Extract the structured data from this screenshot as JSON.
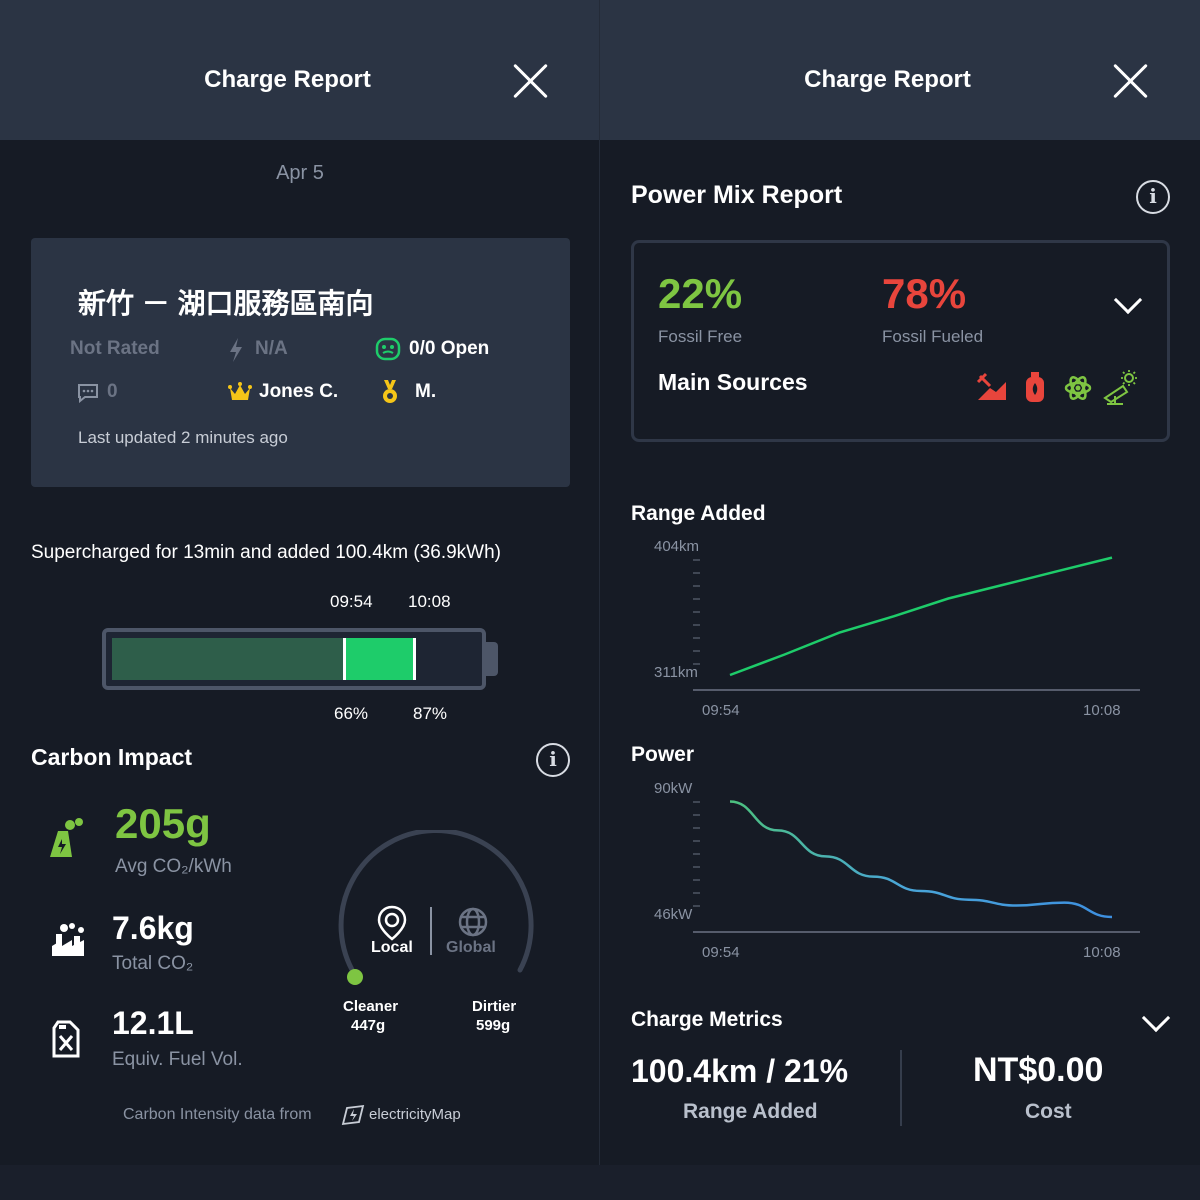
{
  "left": {
    "header_title": "Charge Report",
    "date": "Apr 5",
    "site": {
      "name": "新竹 － 湖口服務區南向",
      "rating": "Not Rated",
      "power": "N/A",
      "availability": "0/0 Open",
      "comments": "0",
      "king": "Jones C.",
      "medal": "M.",
      "last_updated": "Last updated 2 minutes ago"
    },
    "summary": "Supercharged for 13min and added 100.4km (36.9kWh)",
    "battery": {
      "start_time": "09:54",
      "end_time": "10:08",
      "start_pct_label": "66%",
      "end_pct_label": "87%",
      "start_fraction": 0.66,
      "end_fraction": 0.87,
      "prior_color": "#2e5e4a",
      "added_color": "#1ecc6a"
    },
    "carbon": {
      "title": "Carbon Impact",
      "avg_value": "205g",
      "avg_label": "Avg CO₂/kWh",
      "total_value": "7.6kg",
      "total_label": "Total CO₂",
      "fuel_value": "12.1L",
      "fuel_label": "Equiv. Fuel Vol.",
      "gauge": {
        "local_label": "Local",
        "global_label": "Global",
        "cleaner_label": "Cleaner",
        "cleaner_value": "447g",
        "dirtier_label": "Dirtier",
        "dirtier_value": "599g"
      },
      "source_prefix": "Carbon Intensity data from",
      "source_name": "electricityMap"
    }
  },
  "right": {
    "header_title": "Charge Report",
    "power_mix": {
      "title": "Power Mix Report",
      "fossil_free_pct": "22%",
      "fossil_free_label": "Fossil Free",
      "fossil_fueled_pct": "78%",
      "fossil_fueled_label": "Fossil Fueled",
      "main_sources_label": "Main Sources",
      "source_icons": [
        "coal-icon",
        "gas-icon",
        "nuclear-icon",
        "solar-icon"
      ]
    },
    "range_chart": {
      "title": "Range Added",
      "y_max_label": "404km",
      "y_min_label": "311km",
      "x_start_label": "09:54",
      "x_end_label": "10:08"
    },
    "power_chart": {
      "title": "Power",
      "y_max_label": "90kW",
      "y_min_label": "46kW",
      "x_start_label": "09:54",
      "x_end_label": "10:08"
    },
    "metrics": {
      "title": "Charge Metrics",
      "range_value": "100.4km / 21%",
      "range_label": "Range Added",
      "cost_value": "NT$0.00",
      "cost_label": "Cost"
    }
  },
  "chart_data": [
    {
      "type": "line",
      "title": "Range Added",
      "x": [
        "09:54",
        "09:56",
        "09:58",
        "10:00",
        "10:02",
        "10:04",
        "10:06",
        "10:08"
      ],
      "values": [
        311,
        326,
        342,
        354,
        367,
        377,
        387,
        397
      ],
      "ylim": [
        311,
        404
      ],
      "x_tick_labels": [
        "09:54",
        "10:08"
      ],
      "y_tick_labels": [
        "311km",
        "404km"
      ]
    },
    {
      "type": "line",
      "title": "Power",
      "x": [
        "09:54",
        "09:56",
        "09:58",
        "10:00",
        "10:02",
        "10:04",
        "10:06",
        "10:07",
        "10:08"
      ],
      "values": [
        86,
        76,
        67,
        60,
        55,
        52,
        50,
        51,
        46
      ],
      "ylim": [
        46,
        90
      ],
      "x_tick_labels": [
        "09:54",
        "10:08"
      ],
      "y_tick_labels": [
        "46kW",
        "90kW"
      ]
    }
  ]
}
